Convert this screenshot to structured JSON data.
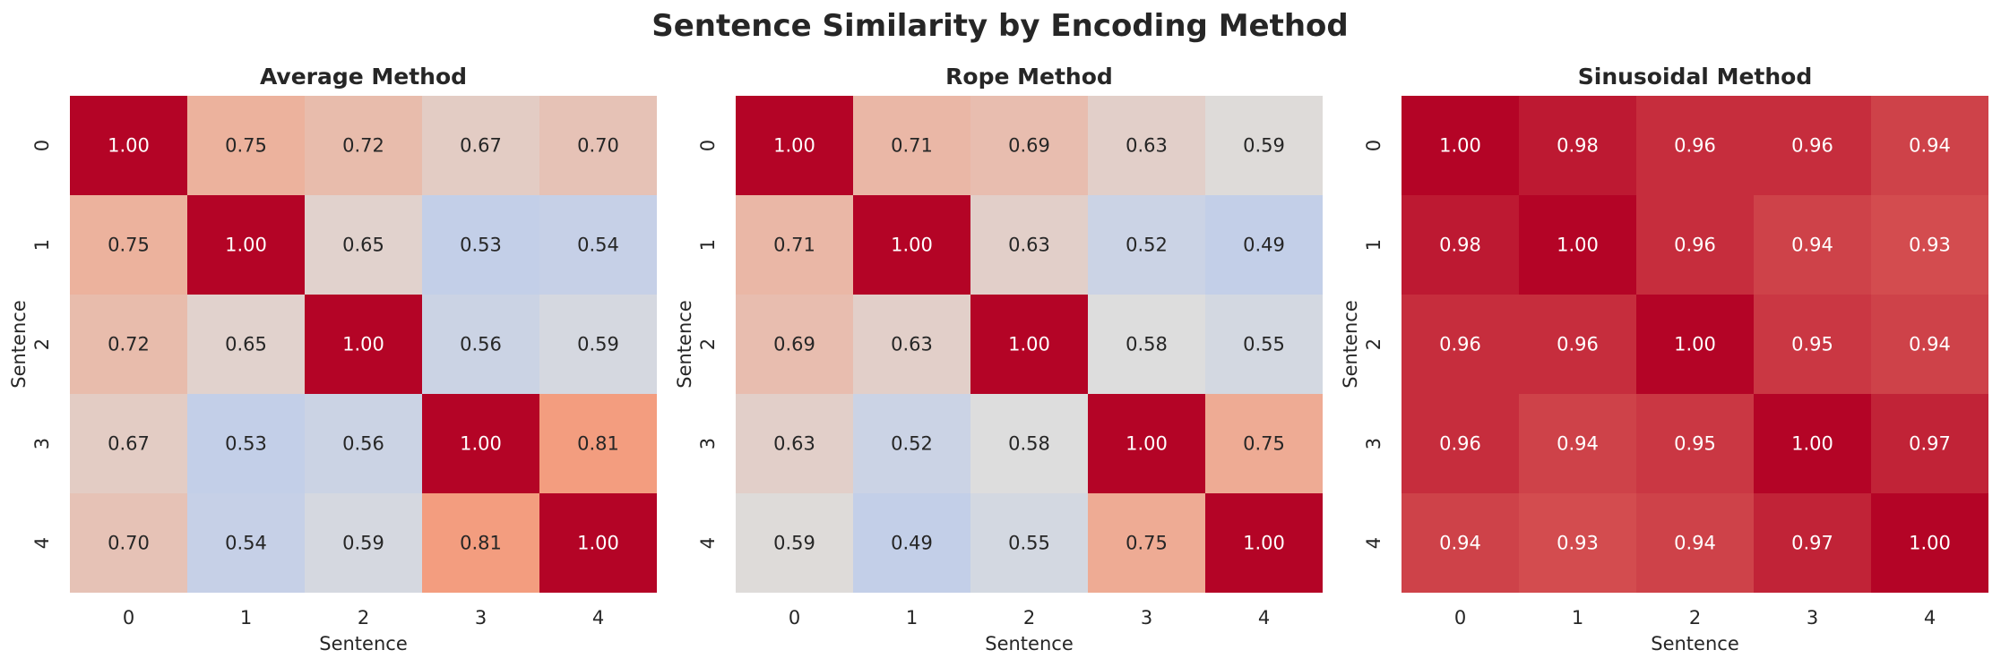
{
  "figure": {
    "title": "Sentence Similarity by Encoding Method"
  },
  "chart_data": [
    {
      "type": "heatmap",
      "title": "Average Method",
      "xlabel": "Sentence",
      "ylabel": "Sentence",
      "x": [
        "0",
        "1",
        "2",
        "3",
        "4"
      ],
      "y": [
        "0",
        "1",
        "2",
        "3",
        "4"
      ],
      "values": [
        [
          1.0,
          0.75,
          0.72,
          0.67,
          0.7
        ],
        [
          0.75,
          1.0,
          0.65,
          0.53,
          0.54
        ],
        [
          0.72,
          0.65,
          1.0,
          0.56,
          0.59
        ],
        [
          0.67,
          0.53,
          0.56,
          1.0,
          0.81
        ],
        [
          0.7,
          0.54,
          0.59,
          0.81,
          1.0
        ]
      ],
      "colormap": "coolwarm",
      "colorbar": false
    },
    {
      "type": "heatmap",
      "title": "Rope Method",
      "xlabel": "Sentence",
      "ylabel": "Sentence",
      "x": [
        "0",
        "1",
        "2",
        "3",
        "4"
      ],
      "y": [
        "0",
        "1",
        "2",
        "3",
        "4"
      ],
      "values": [
        [
          1.0,
          0.71,
          0.69,
          0.63,
          0.59
        ],
        [
          0.71,
          1.0,
          0.63,
          0.52,
          0.49
        ],
        [
          0.69,
          0.63,
          1.0,
          0.58,
          0.55
        ],
        [
          0.63,
          0.52,
          0.58,
          1.0,
          0.75
        ],
        [
          0.59,
          0.49,
          0.55,
          0.75,
          1.0
        ]
      ],
      "colormap": "coolwarm",
      "colorbar": false
    },
    {
      "type": "heatmap",
      "title": "Sinusoidal Method",
      "xlabel": "Sentence",
      "ylabel": "Sentence",
      "x": [
        "0",
        "1",
        "2",
        "3",
        "4"
      ],
      "y": [
        "0",
        "1",
        "2",
        "3",
        "4"
      ],
      "values": [
        [
          1.0,
          0.98,
          0.96,
          0.96,
          0.94
        ],
        [
          0.98,
          1.0,
          0.96,
          0.94,
          0.93
        ],
        [
          0.96,
          0.96,
          1.0,
          0.95,
          0.94
        ],
        [
          0.96,
          0.94,
          0.95,
          1.0,
          0.97
        ],
        [
          0.94,
          0.93,
          0.94,
          0.97,
          1.0
        ]
      ],
      "colormap": "coolwarm",
      "colorbar": false
    }
  ]
}
